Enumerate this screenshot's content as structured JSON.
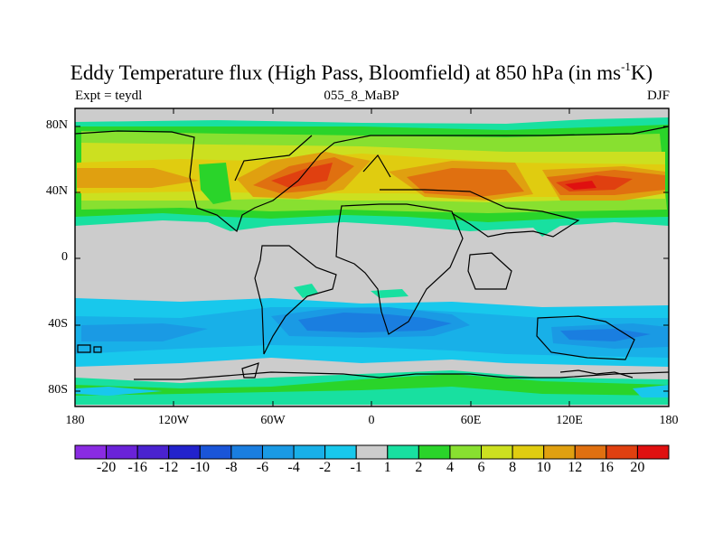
{
  "title": {
    "main": "Eddy Temperature flux (High Pass, Bloomfield) at 850 hPa (in ms",
    "sup": "-1",
    "end": "K)"
  },
  "subtitle": {
    "left": "Expt = teydl",
    "center": "055_8_MaBP",
    "right": "DJF"
  },
  "lat_labels": [
    "80N",
    "40N",
    "0",
    "40S",
    "80S"
  ],
  "lon_labels": [
    "180",
    "120W",
    "60W",
    "0",
    "60E",
    "120E",
    "180"
  ],
  "colorbar": {
    "labels": [
      "-20",
      "-16",
      "-12",
      "-10",
      "-8",
      "-6",
      "-4",
      "-2",
      "-1",
      "1",
      "2",
      "4",
      "6",
      "8",
      "10",
      "12",
      "16",
      "20"
    ],
    "colors": [
      "#8a2be2",
      "#6a22d8",
      "#4a22d0",
      "#2222cc",
      "#1a55d8",
      "#1a7ee0",
      "#1a9ae4",
      "#18b0e8",
      "#18c8ec",
      "#cccccc",
      "#18e0a0",
      "#2ad42a",
      "#88e030",
      "#cce020",
      "#e0cc10",
      "#e0a010",
      "#e07010",
      "#e04010",
      "#e01010"
    ]
  },
  "colors": {
    "land_mask": "#cccccc",
    "background": "#ffffff"
  }
}
